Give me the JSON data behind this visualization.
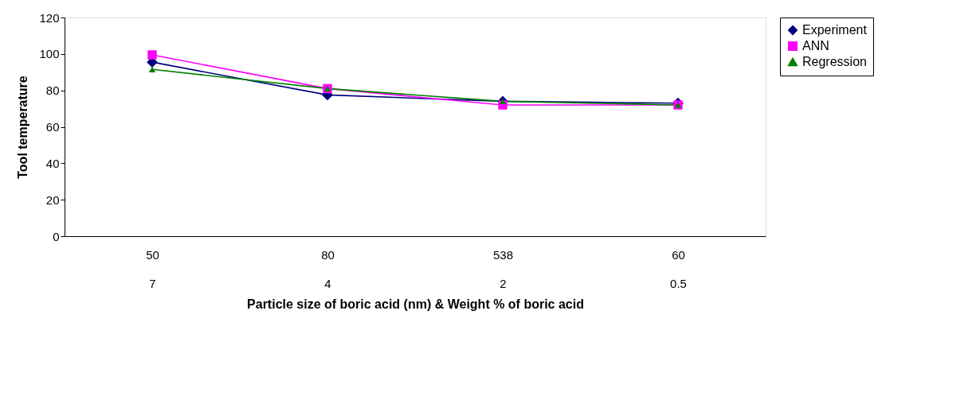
{
  "chart_data": {
    "type": "line",
    "xlabel": "Particle size of boric acid (nm) & Weight % of boric acid",
    "ylabel": "Tool temperature",
    "categories": [
      "50\n7",
      "80\n4",
      "538\n2",
      "60\n0.5"
    ],
    "series": [
      {
        "name": "Experiment",
        "color": "#000080",
        "marker": "diamond",
        "values": [
          95.5,
          77.5,
          74,
          73
        ]
      },
      {
        "name": "ANN",
        "color": "#ff00ff",
        "marker": "square",
        "values": [
          99.5,
          81,
          72,
          72
        ]
      },
      {
        "name": "Regression",
        "color": "#008000",
        "marker": "triangle",
        "values": [
          91.5,
          81,
          74,
          72
        ]
      }
    ],
    "ylim": [
      0,
      120
    ],
    "yticks": [
      0,
      20,
      40,
      60,
      80,
      100,
      120
    ],
    "grid": false,
    "legend": "right",
    "line_style": "solid"
  }
}
